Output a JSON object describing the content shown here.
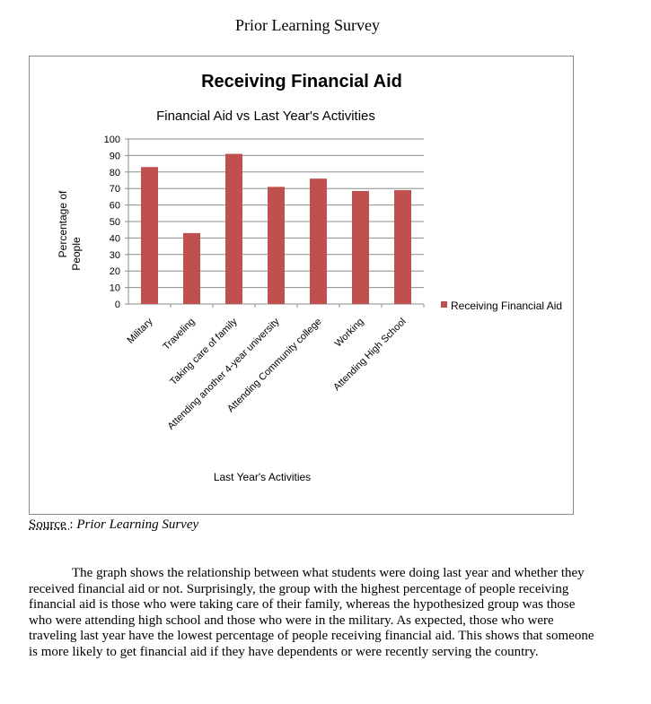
{
  "page": {
    "title": "Prior Learning Survey",
    "source_label": "Source ",
    "source_sep": ": ",
    "source_text": "Prior Learning Survey",
    "caption": "The graph shows the relationship between what students were doing last year and whether they received financial aid or not. Surprisingly, the group with the highest percentage of people receiving financial aid is those who were taking care of their family, whereas the hypothesized group was those who were attending high school and those who were in the military. As expected, those who were traveling last year have the lowest percentage of people receiving financial aid. This shows that someone is more likely to get financial aid if they have dependents or were recently serving the country."
  },
  "chart_data": {
    "type": "bar",
    "title": "Receiving  Financial Aid",
    "subtitle": "Financial Aid vs Last Year's Activities",
    "xlabel": "Last Year's Activities",
    "ylabel_line1": "Percentage of",
    "ylabel_line2": "People",
    "ylim": [
      0,
      100
    ],
    "ytick_step": 10,
    "grid": true,
    "legend_position": "right",
    "bar_color": "#c0504d",
    "categories": [
      "Military",
      "Traveling",
      "Taking care of family",
      "Attending another 4-year university",
      "Attending Community college",
      "Working",
      "Attending High School"
    ],
    "series": [
      {
        "name": "Receiving  Financial Aid",
        "values": [
          83,
          43,
          91,
          71,
          76,
          68.5,
          69
        ]
      }
    ]
  }
}
